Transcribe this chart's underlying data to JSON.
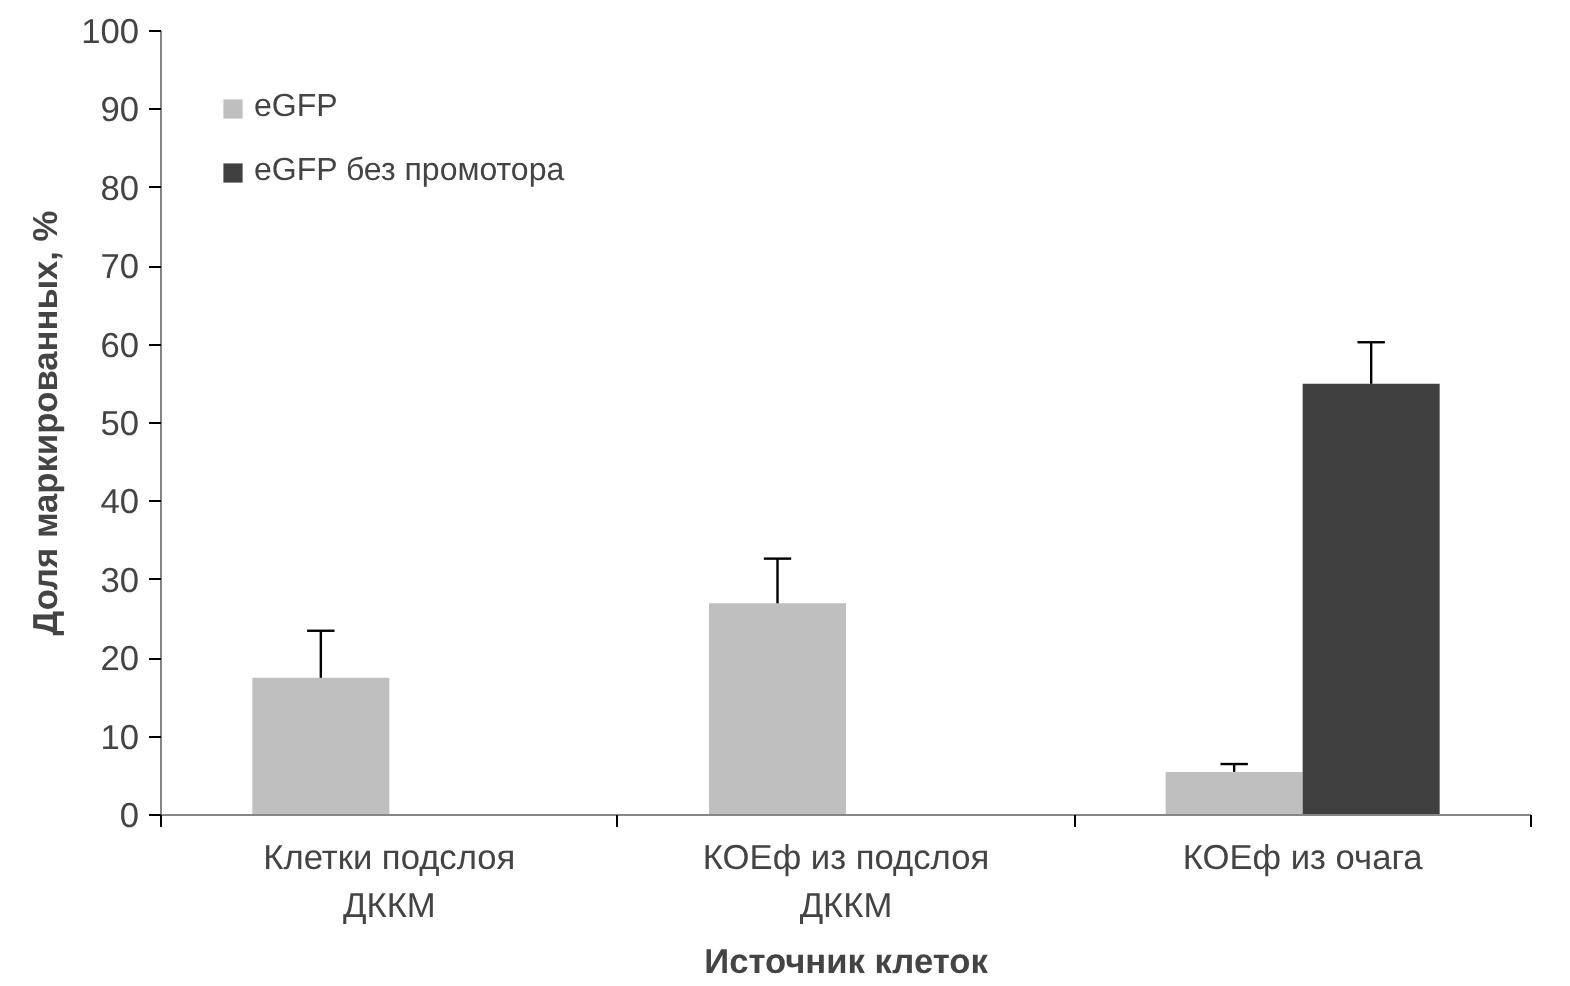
{
  "chart_data": {
    "type": "bar",
    "xlabel": "Источник клеток",
    "ylabel": "Доля маркированных, %",
    "categories": [
      "Клетки подслоя\nДККМ",
      "КОЕф из подслоя\nДККМ",
      "КОЕф из очага"
    ],
    "series": [
      {
        "name": "eGFP",
        "color": "#bfbfbf",
        "values": [
          17.5,
          27,
          5.5
        ],
        "errors": [
          [
            17.5,
            23.5
          ],
          [
            27,
            32.7
          ],
          [
            5.5,
            6.5
          ]
        ]
      },
      {
        "name": "eGFP без промотора",
        "color": "#404040",
        "values": [
          null,
          null,
          55
        ],
        "errors": [
          null,
          null,
          [
            55,
            60.3
          ]
        ]
      }
    ],
    "ylim": [
      0,
      100
    ],
    "yticks": [
      0,
      10,
      20,
      30,
      40,
      50,
      60,
      70,
      80,
      90,
      100
    ],
    "grid": false,
    "legend": "top left"
  }
}
